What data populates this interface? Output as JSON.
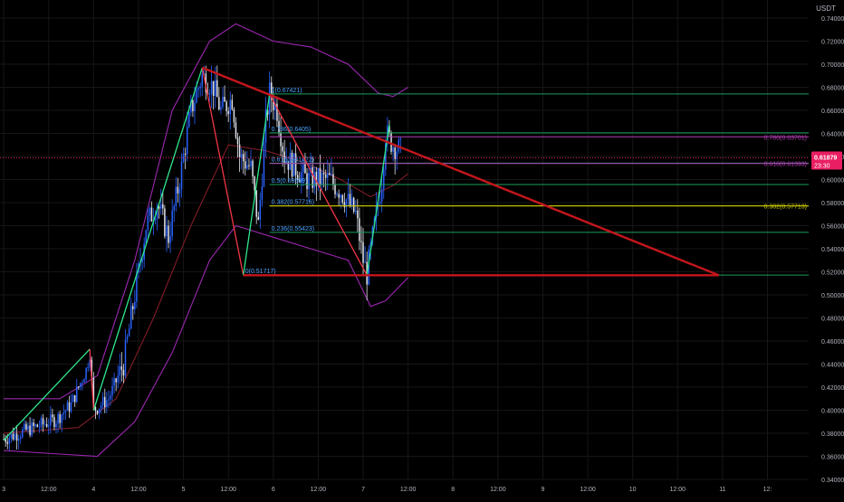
{
  "quote_currency": "USDT",
  "colors": {
    "background": "#000000",
    "grid": "#161616",
    "axis_text": "#b2b5be",
    "candle_up": "#2962ff",
    "candle_down": "#e0e3eb",
    "wave_up": "#2ee88b",
    "wave_down": "#f23645",
    "trendline": "#c4161c",
    "bollinger": "#9c27b0",
    "basis": "#8b1e2a",
    "fib_green": "#1b9e5a",
    "fib_yellow": "#c8c800",
    "fib_magenta": "#b43cb4",
    "fib_label": "#4aa3ff",
    "price_badge": "#e91e63"
  },
  "chart_data": {
    "type": "candlestick",
    "symbol_unit": "USDT",
    "ylim": [
      0.34,
      0.74
    ],
    "y_ticks": [
      0.34,
      0.36,
      0.38,
      0.4,
      0.42,
      0.44,
      0.46,
      0.48,
      0.5,
      0.52,
      0.54,
      0.56,
      0.58,
      0.6,
      0.62,
      0.64,
      0.66,
      0.68,
      0.7,
      0.72,
      0.74
    ],
    "y_tick_labels": [
      "0.34000",
      "0.36000",
      "0.38000",
      "0.40000",
      "0.42000",
      "0.44000",
      "0.46000",
      "0.48000",
      "0.50000",
      "0.52000",
      "0.54000",
      "0.56000",
      "0.58000",
      "0.60000",
      "0.62000",
      "0.64000",
      "0.66000",
      "0.68000",
      "0.70000",
      "0.72000",
      "0.74000"
    ],
    "x_range_hours": [
      -1,
      215
    ],
    "x_ticks": [
      {
        "h": 0,
        "label": "3"
      },
      {
        "h": 12,
        "label": "12:00"
      },
      {
        "h": 24,
        "label": "4"
      },
      {
        "h": 36,
        "label": "12:00"
      },
      {
        "h": 48,
        "label": "5"
      },
      {
        "h": 60,
        "label": "12:00"
      },
      {
        "h": 72,
        "label": "6"
      },
      {
        "h": 84,
        "label": "12:00"
      },
      {
        "h": 96,
        "label": "7"
      },
      {
        "h": 108,
        "label": "12:00"
      },
      {
        "h": 120,
        "label": "8"
      },
      {
        "h": 132,
        "label": "12:00"
      },
      {
        "h": 144,
        "label": "9"
      },
      {
        "h": 156,
        "label": "12:00"
      },
      {
        "h": 168,
        "label": "10"
      },
      {
        "h": 180,
        "label": "12:00"
      },
      {
        "h": 192,
        "label": "11"
      },
      {
        "h": 204,
        "label": "12:"
      }
    ],
    "price_anchors": [
      [
        0,
        0.375
      ],
      [
        8,
        0.385
      ],
      [
        14,
        0.392
      ],
      [
        18,
        0.405
      ],
      [
        22,
        0.435
      ],
      [
        23,
        0.45
      ],
      [
        24,
        0.4
      ],
      [
        28,
        0.41
      ],
      [
        32,
        0.44
      ],
      [
        35,
        0.5
      ],
      [
        38,
        0.56
      ],
      [
        41,
        0.58
      ],
      [
        44,
        0.55
      ],
      [
        47,
        0.6
      ],
      [
        50,
        0.66
      ],
      [
        53,
        0.69
      ],
      [
        56,
        0.68
      ],
      [
        58,
        0.66
      ],
      [
        61,
        0.67
      ],
      [
        63,
        0.62
      ],
      [
        66,
        0.61
      ],
      [
        68,
        0.56
      ],
      [
        70,
        0.65
      ],
      [
        71,
        0.675
      ],
      [
        73,
        0.66
      ],
      [
        75,
        0.62
      ],
      [
        78,
        0.61
      ],
      [
        81,
        0.6
      ],
      [
        84,
        0.6
      ],
      [
        87,
        0.6
      ],
      [
        90,
        0.59
      ],
      [
        92,
        0.58
      ],
      [
        94,
        0.57
      ],
      [
        96,
        0.53
      ],
      [
        97,
        0.518
      ],
      [
        99,
        0.56
      ],
      [
        101,
        0.6
      ],
      [
        102,
        0.64
      ],
      [
        104,
        0.63
      ],
      [
        106,
        0.625
      ]
    ],
    "bollinger_upper": [
      [
        0,
        0.41
      ],
      [
        15,
        0.41
      ],
      [
        25,
        0.43
      ],
      [
        35,
        0.53
      ],
      [
        45,
        0.66
      ],
      [
        55,
        0.72
      ],
      [
        62,
        0.735
      ],
      [
        72,
        0.72
      ],
      [
        82,
        0.715
      ],
      [
        92,
        0.7
      ],
      [
        100,
        0.675
      ],
      [
        104,
        0.672
      ],
      [
        108,
        0.68
      ]
    ],
    "bollinger_lower": [
      [
        0,
        0.365
      ],
      [
        15,
        0.362
      ],
      [
        25,
        0.36
      ],
      [
        35,
        0.39
      ],
      [
        45,
        0.45
      ],
      [
        55,
        0.53
      ],
      [
        62,
        0.56
      ],
      [
        72,
        0.55
      ],
      [
        82,
        0.54
      ],
      [
        92,
        0.53
      ],
      [
        98,
        0.49
      ],
      [
        102,
        0.495
      ],
      [
        108,
        0.515
      ]
    ],
    "basis": [
      [
        0,
        0.38
      ],
      [
        20,
        0.385
      ],
      [
        30,
        0.41
      ],
      [
        40,
        0.48
      ],
      [
        50,
        0.56
      ],
      [
        60,
        0.63
      ],
      [
        70,
        0.625
      ],
      [
        80,
        0.615
      ],
      [
        90,
        0.6
      ],
      [
        98,
        0.585
      ],
      [
        104,
        0.595
      ],
      [
        108,
        0.605
      ]
    ],
    "wave_lines": [
      {
        "kind": "up",
        "points": [
          [
            0,
            0.374
          ],
          [
            23,
            0.453
          ]
        ]
      },
      {
        "kind": "down",
        "points": [
          [
            23,
            0.453
          ],
          [
            24,
            0.4
          ]
        ]
      },
      {
        "kind": "up",
        "points": [
          [
            24,
            0.4
          ],
          [
            53,
            0.697
          ]
        ]
      },
      {
        "kind": "down",
        "points": [
          [
            53,
            0.697
          ],
          [
            64,
            0.517
          ]
        ]
      },
      {
        "kind": "up",
        "points": [
          [
            64,
            0.517
          ],
          [
            71,
            0.674
          ]
        ]
      },
      {
        "kind": "down",
        "points": [
          [
            71,
            0.674
          ],
          [
            97,
            0.517
          ]
        ]
      },
      {
        "kind": "up",
        "points": [
          [
            97,
            0.517
          ],
          [
            103,
            0.648
          ]
        ]
      }
    ],
    "trendlines": [
      {
        "points": [
          [
            53,
            0.697
          ],
          [
            191,
            0.517
          ]
        ]
      },
      {
        "points": [
          [
            64,
            0.517
          ],
          [
            191,
            0.517
          ]
        ]
      }
    ],
    "fib_levels": [
      {
        "ratio": "1",
        "label": "1(0.67421)",
        "value": 0.67421,
        "color": "green",
        "x_start": 71,
        "show_right": false
      },
      {
        "ratio": "0.786",
        "label": "0.786(0.6405)",
        "value": 0.6405,
        "color": "green",
        "x_start": 71,
        "show_right": false
      },
      {
        "ratio": "0.618",
        "label": "0.618(0.61422)",
        "value": 0.61422,
        "color": "green",
        "x_start": 71,
        "show_right": false
      },
      {
        "ratio": "0.5",
        "label": "0.5(0.59569)",
        "value": 0.59569,
        "color": "green",
        "x_start": 71,
        "show_right": false
      },
      {
        "ratio": "0.382",
        "label": "0.382(0.57716)",
        "value": 0.57716,
        "color": "yellow",
        "x_start": 71,
        "show_right": false
      },
      {
        "ratio": "0.236",
        "label": "0.236(0.55423)",
        "value": 0.55423,
        "color": "green",
        "x_start": 71,
        "show_right": false
      },
      {
        "ratio": "0",
        "label": "0(0.51717)",
        "value": 0.51717,
        "color": "green",
        "x_start": 64,
        "show_right": false
      }
    ],
    "fib_right_labels": [
      {
        "label": "0.786(0.63701)",
        "value": 0.63701,
        "color": "magenta",
        "x_start": 71
      },
      {
        "label": "0.618(0.61393)",
        "value": 0.61393,
        "color": "magenta",
        "x_start": 71
      },
      {
        "label": "0.382(0.57713)",
        "value": 0.57713,
        "color": "yellow",
        "x_start": 71
      }
    ],
    "last_price": {
      "value": 0.61879,
      "label": "0.61879",
      "countdown": "23:30"
    }
  }
}
